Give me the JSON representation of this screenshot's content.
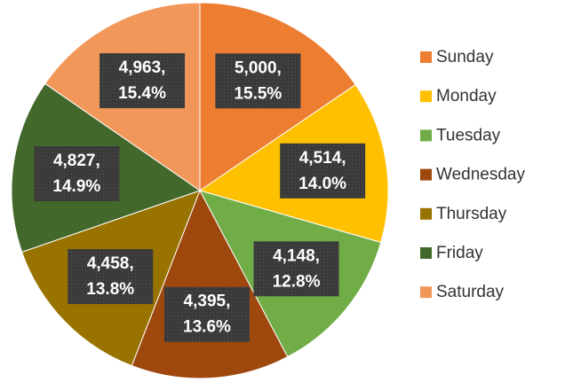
{
  "chart_data": {
    "type": "pie",
    "categories": [
      "Sunday",
      "Monday",
      "Tuesday",
      "Wednesday",
      "Thursday",
      "Friday",
      "Saturday"
    ],
    "values": [
      5000,
      4514,
      4148,
      4395,
      4458,
      4827,
      4963
    ],
    "value_labels": [
      "5,000,",
      "4,514,",
      "4,148,",
      "4,395,",
      "4,458,",
      "4,827,",
      "4,963,"
    ],
    "percents": [
      15.5,
      14.0,
      12.8,
      13.6,
      13.8,
      14.9,
      15.4
    ],
    "percent_labels": [
      "15.5%",
      "14.0%",
      "12.8%",
      "13.6%",
      "13.8%",
      "14.9%",
      "15.4%"
    ],
    "colors": [
      "#ed7d31",
      "#ffc000",
      "#70ad47",
      "#9e480e",
      "#997300",
      "#43682b",
      "#f1975a"
    ],
    "legend": "right"
  }
}
